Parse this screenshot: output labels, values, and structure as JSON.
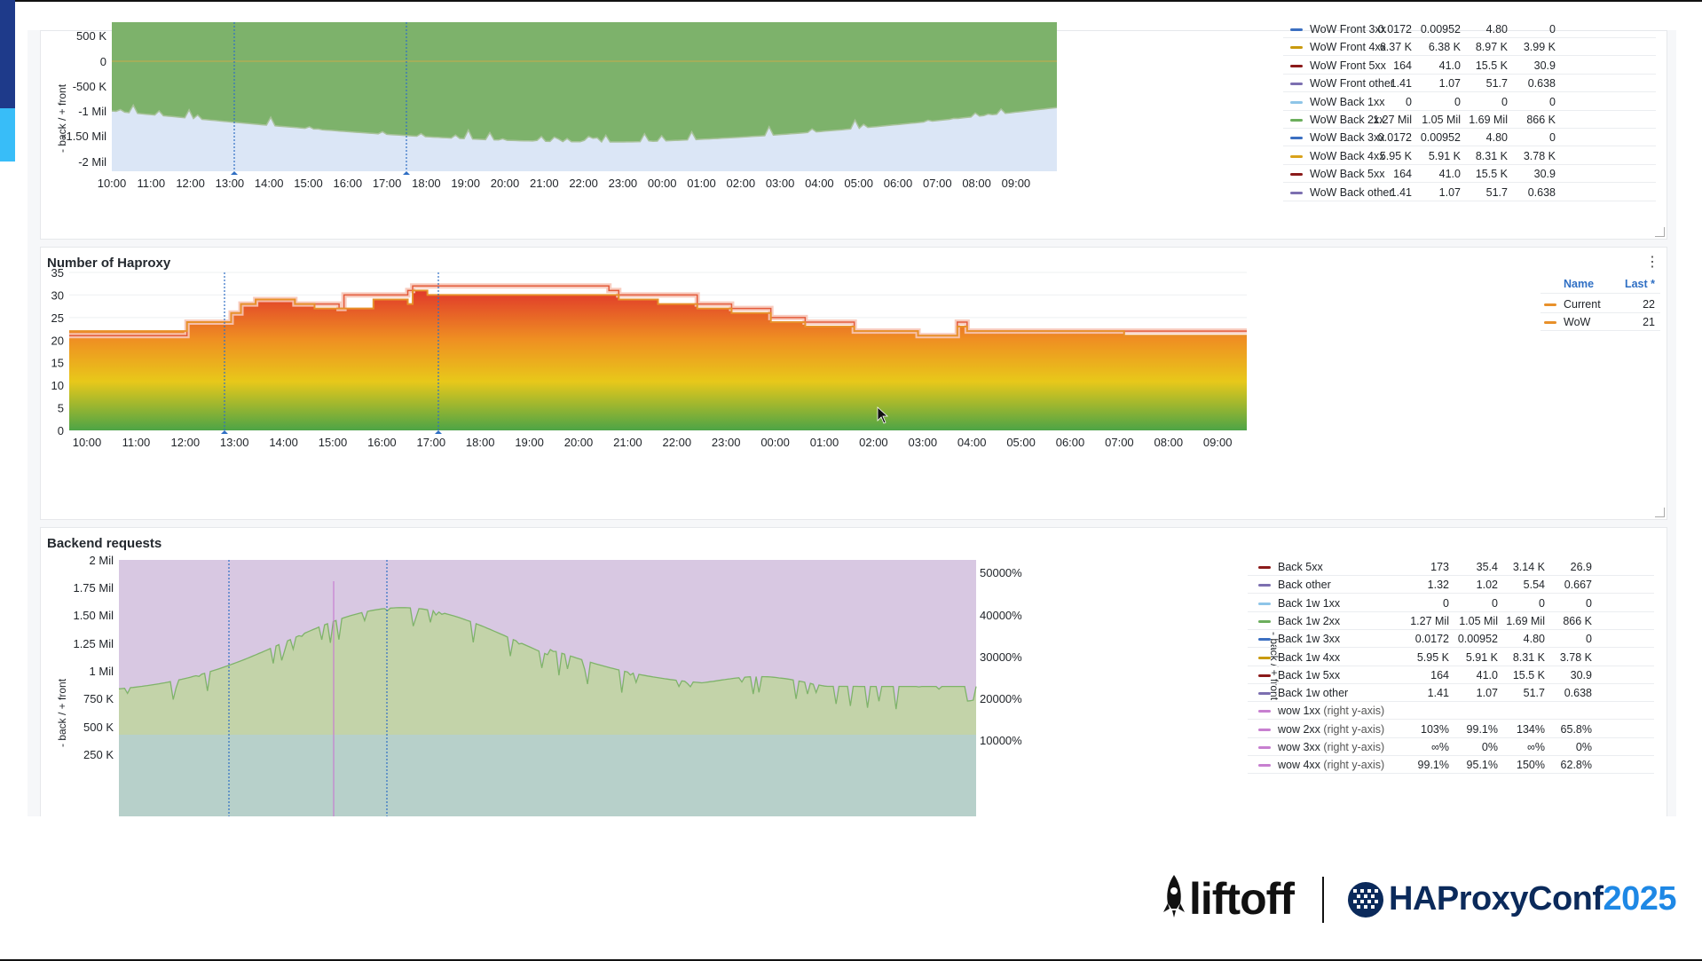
{
  "colors": {
    "green_area": "#7db26b",
    "blue_area": "#dbe6f6",
    "current": "#d9362a",
    "wow": "#e8902a",
    "backend_purple": "#d8c8e2",
    "backend_green": "#c3d3a9",
    "backend_teal": "#b5cfd0",
    "marker": "#2f6fc4"
  },
  "icons": {
    "menu": "kebab-menu-icon",
    "cursor": "mouse-pointer-icon",
    "logo_left": "rocket-icon",
    "logo_right": "haproxy-globe-icon"
  },
  "panel1": {
    "y_axis_label": "- back / + front",
    "y_ticks": [
      "500 K",
      "0",
      "-500 K",
      "-1 Mil",
      "-1.50 Mil",
      "-2 Mil"
    ],
    "x_ticks": [
      "10:00",
      "11:00",
      "12:00",
      "13:00",
      "14:00",
      "15:00",
      "16:00",
      "17:00",
      "18:00",
      "19:00",
      "20:00",
      "21:00",
      "22:00",
      "23:00",
      "00:00",
      "01:00",
      "02:00",
      "03:00",
      "04:00",
      "05:00",
      "06:00",
      "07:00",
      "08:00",
      "09:00"
    ],
    "legend": [
      {
        "name": "WoW Front 3xx",
        "c": "#3b6fc1",
        "v": [
          "0.0172",
          "0.00952",
          "4.80",
          "0"
        ]
      },
      {
        "name": "WoW Front 4xx",
        "c": "#c99a0e",
        "v": [
          "6.37 K",
          "6.38 K",
          "8.97 K",
          "3.99 K"
        ]
      },
      {
        "name": "WoW Front 5xx",
        "c": "#8b1a1a",
        "v": [
          "164",
          "41.0",
          "15.5 K",
          "30.9"
        ]
      },
      {
        "name": "WoW Front other",
        "c": "#7c6fb0",
        "v": [
          "1.41",
          "1.07",
          "51.7",
          "0.638"
        ]
      },
      {
        "name": "WoW Back 1xx",
        "c": "#8ec5e8",
        "v": [
          "0",
          "0",
          "0",
          "0"
        ]
      },
      {
        "name": "WoW Back 2xx",
        "c": "#6cae5d",
        "v": [
          "1.27 Mil",
          "1.05 Mil",
          "1.69 Mil",
          "866 K"
        ]
      },
      {
        "name": "WoW Back 3xx",
        "c": "#3b6fc1",
        "v": [
          "0.0172",
          "0.00952",
          "4.80",
          "0"
        ]
      },
      {
        "name": "WoW Back 4xx",
        "c": "#d9a21a",
        "v": [
          "5.95 K",
          "5.91 K",
          "8.31 K",
          "3.78 K"
        ]
      },
      {
        "name": "WoW Back 5xx",
        "c": "#8b1a1a",
        "v": [
          "164",
          "41.0",
          "15.5 K",
          "30.9"
        ]
      },
      {
        "name": "WoW Back other",
        "c": "#7c6fb0",
        "v": [
          "1.41",
          "1.07",
          "51.7",
          "0.638"
        ]
      }
    ]
  },
  "panel2": {
    "title": "Number of Haproxy",
    "y_ticks": [
      "35",
      "30",
      "25",
      "20",
      "15",
      "10",
      "5",
      "0"
    ],
    "x_ticks": [
      "10:00",
      "11:00",
      "12:00",
      "13:00",
      "14:00",
      "15:00",
      "16:00",
      "17:00",
      "18:00",
      "19:00",
      "20:00",
      "21:00",
      "22:00",
      "23:00",
      "00:00",
      "01:00",
      "02:00",
      "03:00",
      "04:00",
      "05:00",
      "06:00",
      "07:00",
      "08:00",
      "09:00"
    ],
    "legend_header": {
      "name": "Name",
      "last": "Last *"
    },
    "legend": [
      {
        "name": "Current",
        "c": "#e8902a",
        "last": "22"
      },
      {
        "name": "WoW",
        "c": "#e8902a",
        "last": "21"
      }
    ]
  },
  "panel3": {
    "title": "Backend requests",
    "y_axis_label": "- back / + front",
    "y_ticks": [
      "2 Mil",
      "1.75 Mil",
      "1.50 Mil",
      "1.25 Mil",
      "1 Mil",
      "750 K",
      "500 K",
      "250 K"
    ],
    "y2_ticks": [
      "50000%",
      "40000%",
      "30000%",
      "20000%",
      "10000%"
    ],
    "legend": [
      {
        "name": "Back 5xx",
        "c": "#8b1a1a",
        "v": [
          "173",
          "35.4",
          "3.14 K",
          "26.9"
        ]
      },
      {
        "name": "Back other",
        "c": "#7c6fb0",
        "v": [
          "1.32",
          "1.02",
          "5.54",
          "0.667"
        ]
      },
      {
        "name": "Back 1w 1xx",
        "c": "#8ec5e8",
        "v": [
          "0",
          "0",
          "0",
          "0"
        ]
      },
      {
        "name": "Back 1w 2xx",
        "c": "#6cae5d",
        "v": [
          "1.27 Mil",
          "1.05 Mil",
          "1.69 Mil",
          "866 K"
        ]
      },
      {
        "name": "Back 1w 3xx",
        "c": "#3b6fc1",
        "v": [
          "0.0172",
          "0.00952",
          "4.80",
          "0"
        ]
      },
      {
        "name": "Back 1w 4xx",
        "c": "#c99a0e",
        "v": [
          "5.95 K",
          "5.91 K",
          "8.31 K",
          "3.78 K"
        ]
      },
      {
        "name": "Back 1w 5xx",
        "c": "#8b1a1a",
        "v": [
          "164",
          "41.0",
          "15.5 K",
          "30.9"
        ]
      },
      {
        "name": "Back 1w other",
        "c": "#7c6fb0",
        "v": [
          "1.41",
          "1.07",
          "51.7",
          "0.638"
        ]
      },
      {
        "name": "wow 1xx",
        "c": "#c77fd0",
        "suffix": " (right y-axis)",
        "v": [
          "",
          "",
          "",
          ""
        ]
      },
      {
        "name": "wow 2xx",
        "c": "#c77fd0",
        "suffix": " (right y-axis)",
        "v": [
          "103%",
          "99.1%",
          "134%",
          "65.8%"
        ]
      },
      {
        "name": "wow 3xx",
        "c": "#c77fd0",
        "suffix": " (right y-axis)",
        "v": [
          "∞%",
          "0%",
          "∞%",
          "0%"
        ]
      },
      {
        "name": "wow 4xx",
        "c": "#c77fd0",
        "suffix": " (right y-axis)",
        "v": [
          "99.1%",
          "95.1%",
          "150%",
          "62.8%"
        ]
      }
    ]
  },
  "footer": {
    "left_logo": "liftoff",
    "right_logo": "HAProxyConf",
    "year": "2025"
  }
}
